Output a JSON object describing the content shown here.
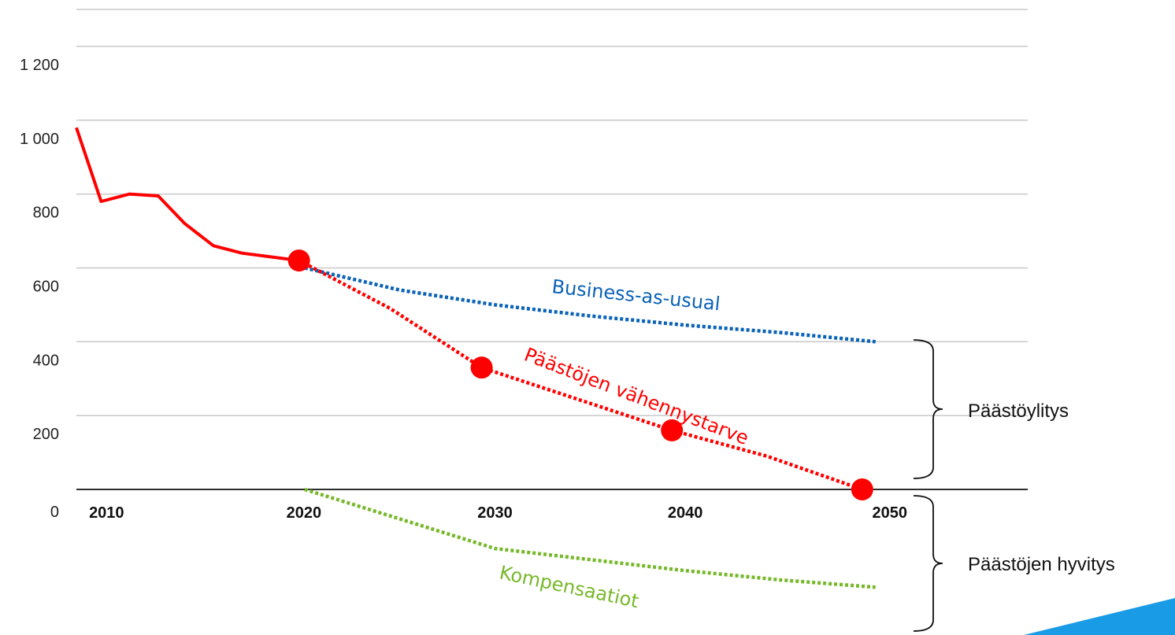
{
  "chart_data": {
    "type": "line",
    "y_ticks": [
      {
        "value": 1200,
        "label": "1 200"
      },
      {
        "value": 1000,
        "label": "1 000"
      },
      {
        "value": 800,
        "label": "800"
      },
      {
        "value": 600,
        "label": "600"
      },
      {
        "value": 400,
        "label": "400"
      },
      {
        "value": 200,
        "label": "200"
      },
      {
        "value": 0,
        "label": "0"
      }
    ],
    "x_ticks": [
      {
        "value": 2010,
        "label": "2010"
      },
      {
        "value": 2020,
        "label": "2020"
      },
      {
        "value": 2030,
        "label": "2030"
      },
      {
        "value": 2040,
        "label": "2040"
      },
      {
        "value": 2050,
        "label": "2050"
      }
    ],
    "xlim": [
      2008,
      2058
    ],
    "ylim": [
      -300,
      1400
    ],
    "grid": true,
    "series": [
      {
        "id": "historical",
        "color": "#ff0000",
        "style": "solid",
        "x": [
          2008,
          2009.3,
          2010.8,
          2012.3,
          2013.7,
          2015.2,
          2016.7,
          2018.2,
          2019.7
        ],
        "y": [
          980,
          780,
          800,
          795,
          720,
          660,
          640,
          630,
          620
        ],
        "markers": [
          {
            "x": 2019.7,
            "y": 620
          }
        ]
      },
      {
        "id": "bau",
        "label": "Business-as-usual",
        "color": "#0a62b7",
        "style": "dotted",
        "x": [
          2020,
          2025,
          2030,
          2035,
          2040,
          2045,
          2050
        ],
        "y": [
          600,
          540,
          500,
          470,
          445,
          425,
          400
        ]
      },
      {
        "id": "reduction",
        "label": "Päästöjen vähennystarve",
        "color": "#ff0000",
        "style": "dotted",
        "x": [
          2019.7,
          2024.5,
          2029.3,
          2034.3,
          2039.3,
          2044.3,
          2049.3
        ],
        "y": [
          620,
          490,
          330,
          245,
          160,
          90,
          0
        ],
        "markers": [
          {
            "x": 2029.3,
            "y": 330
          },
          {
            "x": 2039.3,
            "y": 160
          },
          {
            "x": 2049.3,
            "y": 0
          }
        ]
      },
      {
        "id": "compensation",
        "label": "Kompensaatiot",
        "color": "#77b82a",
        "style": "dotted",
        "x": [
          2020,
          2025,
          2030,
          2035,
          2040,
          2045,
          2050
        ],
        "y": [
          0,
          -80,
          -160,
          -190,
          -220,
          -245,
          -265
        ]
      }
    ],
    "annotations": [
      {
        "id": "excess",
        "label": "Päästöylitys",
        "from": 400,
        "to": 0
      },
      {
        "id": "offset",
        "label": "Päästöjen hyvitys",
        "from": 0,
        "to": -265
      }
    ]
  }
}
